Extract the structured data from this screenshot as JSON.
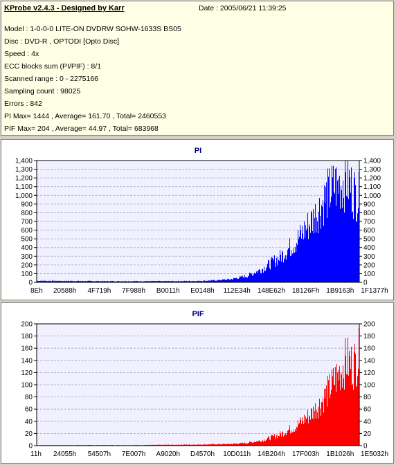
{
  "header": {
    "app_title": "KProbe v2.4.3 - Designed by Karr",
    "date": "Date : 2005/06/21 11:39:25"
  },
  "info": {
    "model": "Model : 1-0-0-0 LITE-ON DVDRW SOHW-1633S BS05",
    "disc": "Disc : DVD-R , OPTODI [Opto Disc]",
    "speed": "Speed : 4x",
    "ecc": "ECC blocks sum (PI/PIF) : 8/1",
    "range": "Scanned range : 0 - 2275166",
    "sampling": "Sampling count : 98025",
    "errors": "Errors : 842",
    "pi_stats": "PI Max= 1444 , Average= 161.70 , Total= 2460553",
    "pif_stats": "PIF Max= 204 , Average= 44.97 , Total= 683968"
  },
  "colors": {
    "pi_bars": "#0000ff",
    "pif_bars": "#ff0000",
    "pi_title": "#000080",
    "pif_title": "#000080",
    "plot_bg": "#f0f0ff",
    "grid": "#a0a0c0"
  },
  "chart_data": [
    {
      "type": "bar",
      "title": "PI",
      "xlabel": "",
      "ylabel": "",
      "ylim": [
        0,
        1400
      ],
      "yticks": [
        0,
        100,
        200,
        300,
        400,
        500,
        600,
        700,
        800,
        900,
        1000,
        1100,
        1200,
        1300,
        1400
      ],
      "ytick_labels": [
        "0",
        "100",
        "200",
        "300",
        "400",
        "500",
        "600",
        "700",
        "800",
        "900",
        "1,000",
        "1,100",
        "1,200",
        "1,300",
        "1,400"
      ],
      "xtick_labels": [
        "8Eh",
        "20588h",
        "4F719h",
        "7F988h",
        "B0011h",
        "E0148h",
        "112E34h",
        "148E62h",
        "18126Fh",
        "1B9163h",
        "1F1377h"
      ],
      "grid": true,
      "envelope": {
        "x": [
          0,
          0.2,
          0.4,
          0.5,
          0.55,
          0.6,
          0.65,
          0.7,
          0.75,
          0.8,
          0.85,
          0.88,
          0.9,
          0.92,
          0.94,
          0.96,
          0.98,
          1.0
        ],
        "values": [
          20,
          15,
          15,
          18,
          25,
          40,
          80,
          180,
          320,
          520,
          800,
          1000,
          1150,
          1250,
          1300,
          1350,
          1200,
          1100
        ]
      },
      "max": 1444
    },
    {
      "type": "bar",
      "title": "PIF",
      "xlabel": "",
      "ylabel": "",
      "ylim": [
        0,
        200
      ],
      "yticks": [
        0,
        20,
        40,
        60,
        80,
        100,
        120,
        140,
        160,
        180,
        200
      ],
      "ytick_labels": [
        "0",
        "20",
        "40",
        "60",
        "80",
        "100",
        "120",
        "140",
        "160",
        "180",
        "200"
      ],
      "xtick_labels": [
        "11h",
        "24055h",
        "54507h",
        "7E007h",
        "A9020h",
        "D4570h",
        "10D011h",
        "14B204h",
        "17F003h",
        "1B1026h",
        "1E5032h"
      ],
      "grid": true,
      "envelope": {
        "x": [
          0,
          0.3,
          0.5,
          0.6,
          0.65,
          0.7,
          0.75,
          0.8,
          0.85,
          0.88,
          0.9,
          0.92,
          0.94,
          0.96,
          0.98,
          1.0
        ],
        "values": [
          1,
          1,
          2,
          3,
          5,
          10,
          20,
          35,
          60,
          80,
          100,
          120,
          140,
          160,
          150,
          170
        ]
      },
      "max": 204
    }
  ]
}
